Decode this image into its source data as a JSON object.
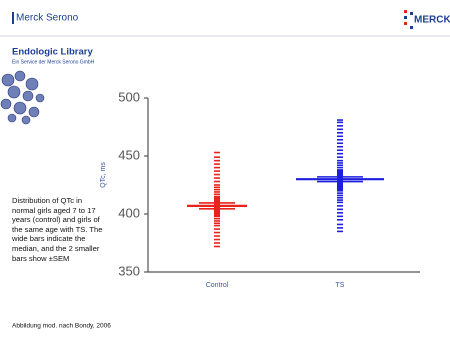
{
  "header": {
    "logo_left": "Merck Serono",
    "logo_right": "MERCK",
    "title": "Endologic Library",
    "subtitle": "Ein Service der Merck Serono GmbH"
  },
  "description": "Distribution of QTc in normal girls aged 7 to 17 years (control) and girls of the same age with TS. The wide bars indicate the median, and the 2 smaller bars show ±SEM",
  "footer": "Abbildung mod. nach Bondy, 2006",
  "chart_data": {
    "type": "strip",
    "y_label": "QTc, ms",
    "categories": [
      "Control",
      "TS"
    ],
    "groups": [
      {
        "color": "#e8231c",
        "median": 407,
        "sem": [
          404.5,
          409.5
        ],
        "values": [
          372,
          375,
          378,
          381,
          384,
          387,
          390,
          392,
          394,
          396,
          398,
          399,
          400,
          401,
          402,
          403,
          404,
          405,
          406,
          406,
          407,
          407,
          408,
          409,
          410,
          411,
          412,
          413,
          414,
          415,
          417,
          419,
          421,
          423,
          425,
          428,
          431,
          434,
          437,
          440,
          443,
          446,
          449,
          453
        ]
      },
      {
        "color": "#1e1ee0",
        "median": 430,
        "sem": [
          428,
          432
        ],
        "values": [
          385,
          388,
          391,
          395,
          398,
          401,
          404,
          407,
          410,
          412,
          414,
          416,
          418,
          420,
          421,
          422,
          423,
          424,
          425,
          426,
          427,
          428,
          429,
          429,
          430,
          430,
          431,
          432,
          433,
          434,
          435,
          436,
          437,
          438,
          440,
          442,
          444,
          446,
          449,
          452,
          455,
          458,
          461,
          464,
          467,
          470,
          473,
          476,
          479,
          481
        ]
      }
    ],
    "ylim": [
      350,
      500
    ],
    "yticks": [
      350,
      400,
      450,
      500
    ]
  }
}
